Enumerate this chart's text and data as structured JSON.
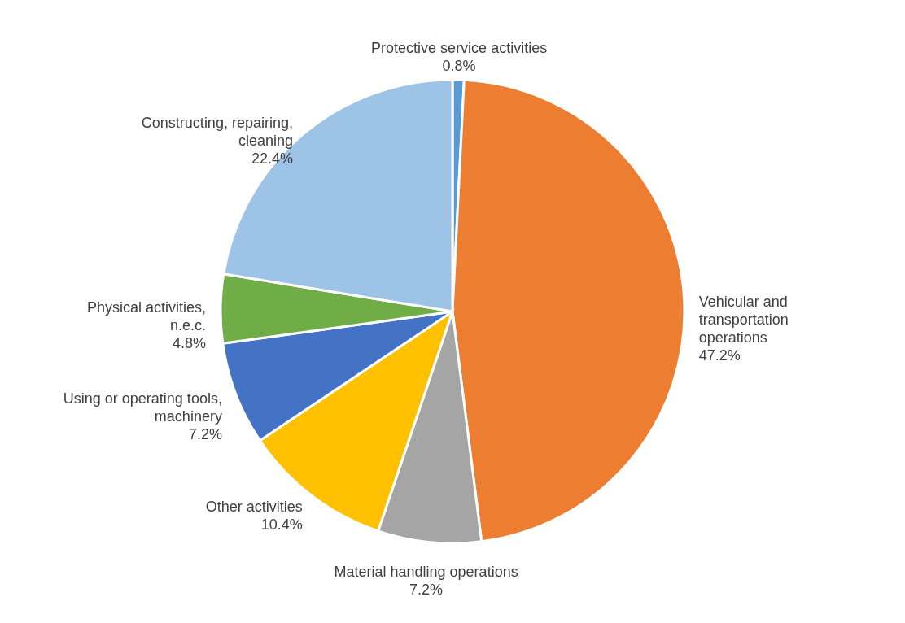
{
  "chart_data": {
    "type": "pie",
    "categories": [
      "Protective service activities",
      "Vehicular and transportation operations",
      "Material handling operations",
      "Other activities",
      "Using or operating tools, machinery",
      "Physical activities, n.e.c.",
      "Constructing, repairing, cleaning"
    ],
    "values": [
      0.8,
      47.2,
      7.2,
      10.4,
      7.2,
      4.8,
      22.4
    ],
    "colors": [
      "#5b9bd5",
      "#ed7d31",
      "#a5a5a5",
      "#ffc000",
      "#4472c4",
      "#70ad47",
      "#9dc3e6"
    ],
    "value_labels": [
      "0.8%",
      "47.2%",
      "7.2%",
      "10.4%",
      "7.2%",
      "4.8%",
      "22.4%"
    ]
  }
}
